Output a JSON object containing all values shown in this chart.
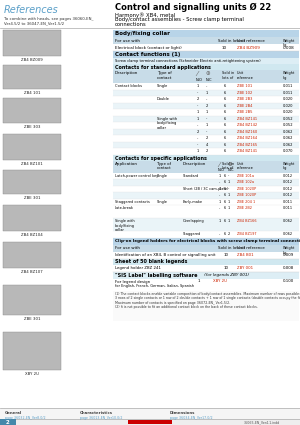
{
  "title": "Control and signalling units Ø 22",
  "subtitle1": "Harmony® XB4, metal",
  "subtitle2": "Body/contact assemblies - Screw clamp terminal",
  "subtitle3": "connections",
  "ref_title": "References",
  "section_bg": "#b8d4e8",
  "light_blue": "#c8dce8",
  "white": "#ffffff",
  "black": "#000000",
  "page_bg": "#ffffff",
  "red_ref": "#cc2200",
  "teal": "#5a9fc8",
  "gray_img": "#b8b8b8",
  "row_alt": "#eaf4f8"
}
